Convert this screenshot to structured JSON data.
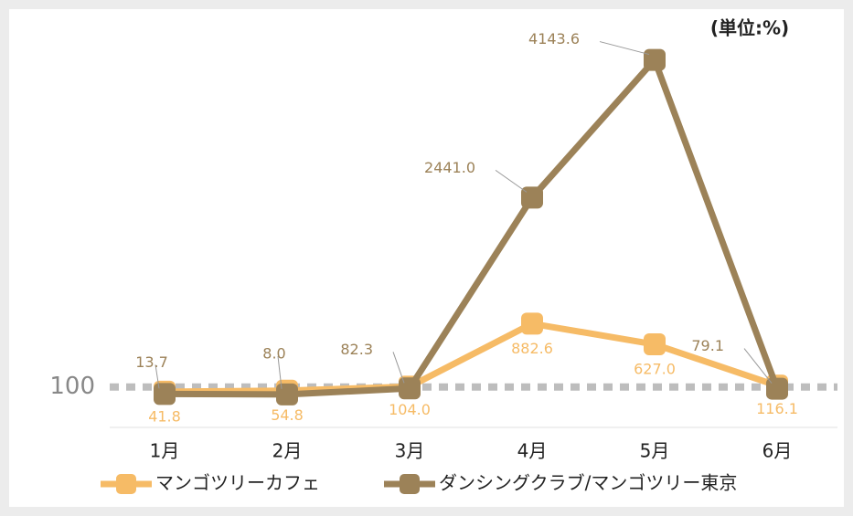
{
  "chart_data": {
    "type": "line",
    "unit_label": "(単位:%)",
    "categories": [
      "1月",
      "2月",
      "3月",
      "4月",
      "5月",
      "6月"
    ],
    "reference_line": 100,
    "ylim": [
      -400,
      4500
    ],
    "series": [
      {
        "name": "マンゴツリーカフェ",
        "color": "#f6bb66",
        "values": [
          41.8,
          54.8,
          104.0,
          882.6,
          627.0,
          116.1
        ],
        "value_labels": [
          "41.8",
          "54.8",
          "104.0",
          "882.6",
          "627.0",
          "116.1"
        ]
      },
      {
        "name": "ダンシングクラブ/マンゴツリー東京",
        "color": "#9c8258",
        "values": [
          13.7,
          8.0,
          82.3,
          2441.0,
          4143.6,
          79.1
        ],
        "value_labels": [
          "13.7",
          "8.0",
          "82.3",
          "2441.0",
          "4143.6",
          "79.1"
        ]
      }
    ]
  }
}
